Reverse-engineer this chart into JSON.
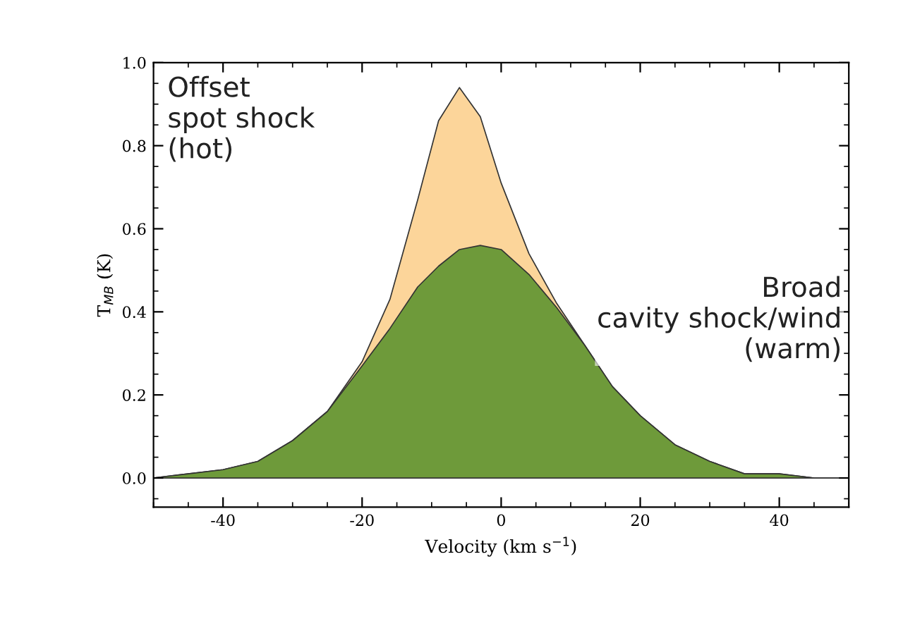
{
  "chart_data": {
    "type": "area",
    "xlabel": "Velocity (km s$^{−1}$)",
    "ylabel": "T$_{MB}$ (K)",
    "x": [
      -50,
      -45,
      -40,
      -35,
      -30,
      -25,
      -20,
      -16,
      -12,
      -9,
      -6,
      -3,
      0,
      4,
      8,
      12,
      16,
      20,
      25,
      30,
      35,
      40,
      45,
      50
    ],
    "series": [
      {
        "color": "#fcd59a",
        "values": [
          0.0,
          0.01,
          0.02,
          0.04,
          0.09,
          0.16,
          0.28,
          0.43,
          0.67,
          0.86,
          0.94,
          0.87,
          0.71,
          0.54,
          0.42,
          0.32,
          0.22,
          0.15,
          0.08,
          0.04,
          0.01,
          0.01,
          0.0,
          0.0
        ]
      },
      {
        "color": "#6e9a3a",
        "values": [
          0.0,
          0.01,
          0.02,
          0.04,
          0.09,
          0.16,
          0.27,
          0.36,
          0.46,
          0.51,
          0.55,
          0.56,
          0.55,
          0.49,
          0.41,
          0.32,
          0.22,
          0.15,
          0.08,
          0.04,
          0.01,
          0.01,
          0.0,
          0.0
        ]
      }
    ],
    "xlim": [
      -50,
      50
    ],
    "ylim": [
      -0.07,
      1.0
    ],
    "xticks": [
      -40,
      -20,
      0,
      20,
      40
    ],
    "yticks": [
      {
        "value": 0,
        "label": "0.0"
      },
      {
        "value": 0.2,
        "label": "0.2"
      },
      {
        "value": 0.4,
        "label": "0.4"
      },
      {
        "value": 0.6,
        "label": "0.6"
      },
      {
        "value": 0.8,
        "label": "0.8"
      },
      {
        "value": 1.0,
        "label": "1.0"
      }
    ],
    "annotations": [
      "Offset\nspot shock\n(hot)",
      "Broad\ncavity shock/wind\n(warm)"
    ],
    "grid": false,
    "legend": false
  }
}
